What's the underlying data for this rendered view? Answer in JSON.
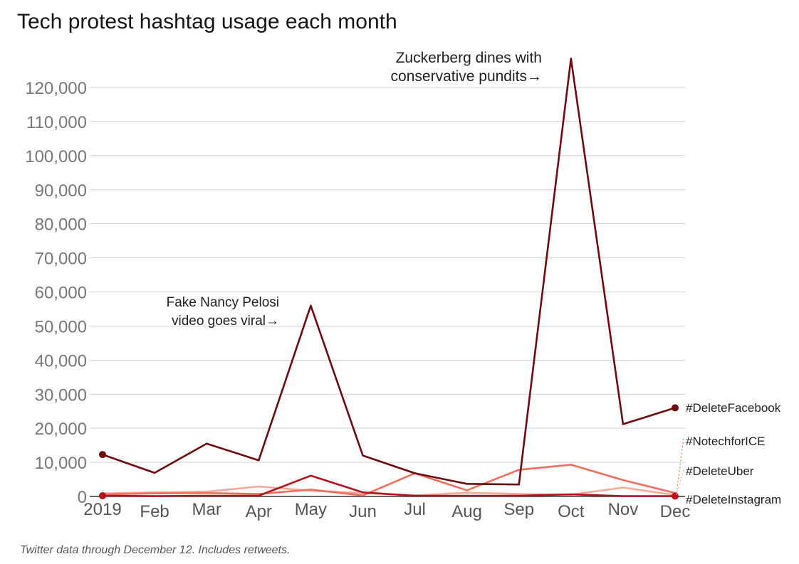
{
  "chart_data": {
    "type": "line",
    "title": "Tech protest hashtag usage each month",
    "categories": [
      "2019",
      "Feb",
      "Mar",
      "Apr",
      "May",
      "Jun",
      "Jul",
      "Aug",
      "Sep",
      "Oct",
      "Nov",
      "Dec"
    ],
    "ylim": [
      0,
      120000
    ],
    "yticks": [
      0,
      10000,
      20000,
      30000,
      40000,
      50000,
      60000,
      70000,
      80000,
      90000,
      100000,
      110000,
      120000
    ],
    "ytick_labels": [
      "0",
      "10,000",
      "20,000",
      "30,000",
      "40,000",
      "50,000",
      "60,000",
      "70,000",
      "80,000",
      "90,000",
      "100,000",
      "110,000",
      "120,000"
    ],
    "grid": true,
    "series": [
      {
        "name": "#DeleteFacebook",
        "color": "#6e0a0e",
        "values": [
          12300,
          6900,
          15500,
          10600,
          56000,
          12000,
          6800,
          3700,
          3500,
          128500,
          21200,
          26000
        ]
      },
      {
        "name": "#NotechforICE",
        "color": "#f26d5b",
        "values": [
          600,
          900,
          1000,
          700,
          2000,
          300,
          6800,
          1800,
          7800,
          9300,
          4800,
          1000
        ]
      },
      {
        "name": "#DeleteUber",
        "color": "#f7a898",
        "values": [
          900,
          1200,
          1400,
          2900,
          1700,
          1000,
          300,
          1100,
          700,
          500,
          2600,
          400
        ]
      },
      {
        "name": "#DeleteInstagram",
        "color": "#b5121b",
        "values": [
          200,
          100,
          200,
          200,
          6100,
          1200,
          200,
          200,
          200,
          600,
          100,
          100
        ]
      }
    ],
    "annotations": [
      {
        "lines": [
          "Fake Nancy Pelosi",
          "video goes viral→"
        ]
      },
      {
        "lines": [
          "Zuckerberg dines with",
          "conservative pundits→"
        ]
      }
    ]
  },
  "footnote": "Twitter data through December 12. Includes retweets."
}
